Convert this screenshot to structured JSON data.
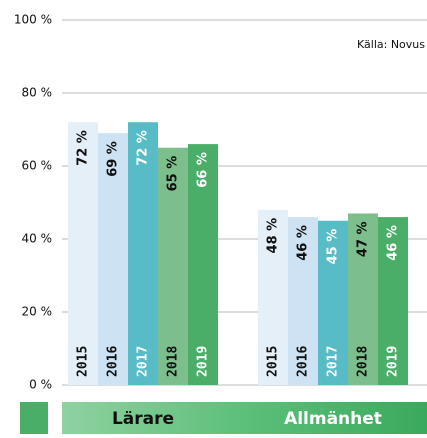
{
  "chart_data": {
    "type": "bar",
    "source": "Källa: Novus",
    "categories": [
      "Lärare",
      "Allmänhet"
    ],
    "series": [
      {
        "name": "2015",
        "color": "#e4eff8",
        "values": [
          72,
          48
        ],
        "value_labels": [
          "72 %",
          "48 %"
        ]
      },
      {
        "name": "2016",
        "color": "#cde2f3",
        "values": [
          69,
          46
        ],
        "value_labels": [
          "69 %",
          "46 %"
        ]
      },
      {
        "name": "2017",
        "color": "#58bcc6",
        "values": [
          72,
          45
        ],
        "value_labels": [
          "72 %",
          "45 %"
        ]
      },
      {
        "name": "2018",
        "color": "#7cbf8c",
        "values": [
          65,
          47
        ],
        "value_labels": [
          "65 %",
          "47 %"
        ]
      },
      {
        "name": "2019",
        "color": "#4aae68",
        "values": [
          66,
          46
        ],
        "value_labels": [
          "66 %",
          "46 %"
        ]
      }
    ],
    "ylim": [
      0,
      100
    ],
    "yticks": [
      {
        "value": 0,
        "label": "0 %"
      },
      {
        "value": 20,
        "label": "20 %"
      },
      {
        "value": 40,
        "label": "40 %"
      },
      {
        "value": 60,
        "label": "60 %"
      },
      {
        "value": 80,
        "label": "80 %"
      },
      {
        "value": 100,
        "label": "100 %"
      }
    ],
    "grid": true
  }
}
